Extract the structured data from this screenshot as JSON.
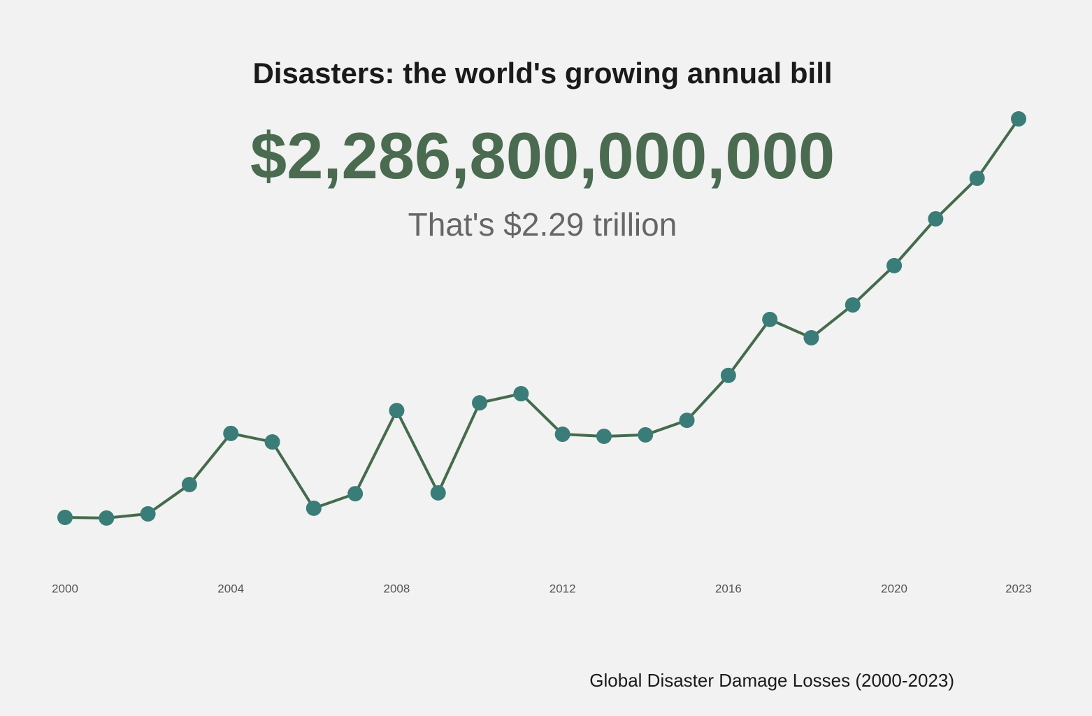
{
  "chart_data": {
    "type": "line",
    "title": "Disasters: the world's growing annual bill",
    "headline": "$2,286,800,000,000",
    "subtitle": "That's $2.29 trillion",
    "caption": "Global Disaster Damage Losses (2000-2023)",
    "x": [
      2000,
      2001,
      2002,
      2003,
      2004,
      2005,
      2006,
      2007,
      2008,
      2009,
      2010,
      2011,
      2012,
      2013,
      2014,
      2015,
      2016,
      2017,
      2018,
      2019,
      2020,
      2021,
      2022,
      2023
    ],
    "values": [
      370,
      367,
      387,
      528,
      774,
      733,
      414,
      484,
      884,
      488,
      921,
      965,
      770,
      760,
      767,
      837,
      1053,
      1322,
      1234,
      1392,
      1581,
      1806,
      2001,
      2286.8
    ],
    "xlim": [
      2000,
      2023
    ],
    "xticks": [
      2000,
      2004,
      2008,
      2012,
      2016,
      2020,
      2023
    ],
    "line_color": "#456b4d",
    "marker_color": "#3a7d78",
    "grid": false
  }
}
